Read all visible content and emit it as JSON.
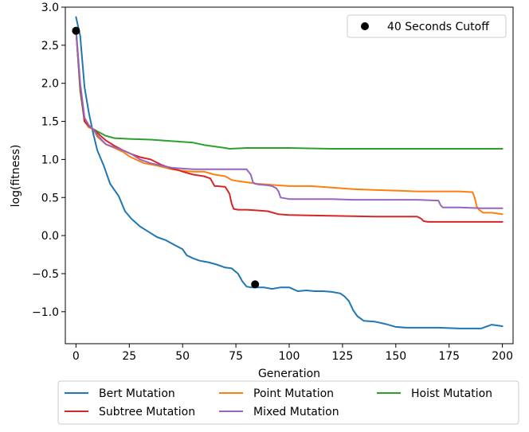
{
  "chart_data": {
    "type": "line",
    "title": "",
    "xlabel": "Generation",
    "ylabel": "log(fitness)",
    "xlim": [
      -5,
      205
    ],
    "ylim": [
      -1.42,
      3.0
    ],
    "x_ticks": [
      0,
      25,
      50,
      75,
      100,
      125,
      150,
      175,
      200
    ],
    "x_tick_labels": [
      "0",
      "25",
      "50",
      "75",
      "100",
      "125",
      "150",
      "175",
      "200"
    ],
    "y_ticks": [
      -1.0,
      -0.5,
      0.0,
      0.5,
      1.0,
      1.5,
      2.0,
      2.5,
      3.0
    ],
    "y_tick_labels": [
      "−1.0",
      "−0.5",
      "0.0",
      "0.5",
      "1.0",
      "1.5",
      "2.0",
      "2.5",
      "3.0"
    ],
    "grid": false,
    "series": [
      {
        "name": "Bert Mutation",
        "color": "#1f77b4",
        "x": [
          0,
          2,
          4,
          6,
          8,
          10,
          13,
          16,
          20,
          23,
          26,
          30,
          34,
          38,
          42,
          46,
          50,
          52,
          55,
          58,
          62,
          66,
          70,
          73,
          76,
          78,
          80,
          82,
          84,
          88,
          92,
          96,
          100,
          104,
          108,
          112,
          116,
          120,
          124,
          126,
          128,
          130,
          132,
          135,
          140,
          145,
          150,
          155,
          160,
          170,
          180,
          190,
          195,
          200
        ],
        "y": [
          2.87,
          2.62,
          1.95,
          1.62,
          1.35,
          1.12,
          0.92,
          0.68,
          0.52,
          0.32,
          0.22,
          0.12,
          0.05,
          -0.02,
          -0.06,
          -0.12,
          -0.18,
          -0.26,
          -0.3,
          -0.33,
          -0.35,
          -0.38,
          -0.42,
          -0.43,
          -0.5,
          -0.6,
          -0.67,
          -0.68,
          -0.68,
          -0.68,
          -0.7,
          -0.68,
          -0.68,
          -0.73,
          -0.72,
          -0.73,
          -0.73,
          -0.74,
          -0.76,
          -0.8,
          -0.86,
          -0.98,
          -1.06,
          -1.12,
          -1.13,
          -1.16,
          -1.2,
          -1.21,
          -1.21,
          -1.21,
          -1.22,
          -1.22,
          -1.17,
          -1.19
        ]
      },
      {
        "name": "Point Mutation",
        "color": "#ff7f0e",
        "x": [
          0,
          2,
          4,
          6,
          8,
          10,
          14,
          18,
          22,
          25,
          28,
          32,
          38,
          45,
          50,
          55,
          60,
          65,
          70,
          73,
          75,
          80,
          85,
          90,
          100,
          110,
          120,
          130,
          140,
          150,
          160,
          170,
          180,
          186,
          187,
          188,
          189,
          191,
          195,
          200
        ],
        "y": [
          2.7,
          1.95,
          1.5,
          1.42,
          1.4,
          1.3,
          1.2,
          1.15,
          1.1,
          1.04,
          1.0,
          0.95,
          0.92,
          0.87,
          0.85,
          0.84,
          0.84,
          0.8,
          0.78,
          0.73,
          0.72,
          0.7,
          0.68,
          0.67,
          0.65,
          0.65,
          0.63,
          0.61,
          0.6,
          0.59,
          0.58,
          0.58,
          0.58,
          0.57,
          0.5,
          0.38,
          0.34,
          0.3,
          0.3,
          0.28
        ]
      },
      {
        "name": "Hoist Mutation",
        "color": "#2ca02c",
        "x": [
          0,
          2,
          4,
          6,
          8,
          10,
          14,
          18,
          25,
          35,
          45,
          55,
          60,
          65,
          70,
          72,
          80,
          100,
          120,
          140,
          160,
          180,
          200
        ],
        "y": [
          2.72,
          1.9,
          1.5,
          1.44,
          1.4,
          1.37,
          1.31,
          1.28,
          1.27,
          1.26,
          1.24,
          1.22,
          1.19,
          1.17,
          1.15,
          1.14,
          1.15,
          1.15,
          1.14,
          1.14,
          1.14,
          1.14,
          1.14
        ]
      },
      {
        "name": "Subtree Mutation",
        "color": "#d62728",
        "x": [
          0,
          2,
          4,
          6,
          8,
          10,
          14,
          18,
          22,
          26,
          30,
          35,
          40,
          45,
          48,
          50,
          55,
          60,
          63,
          65,
          66,
          70,
          72,
          73,
          74,
          76,
          80,
          85,
          90,
          95,
          100,
          120,
          140,
          160,
          162,
          163,
          165,
          180,
          200
        ],
        "y": [
          2.7,
          1.95,
          1.5,
          1.44,
          1.4,
          1.35,
          1.25,
          1.18,
          1.12,
          1.07,
          1.03,
          1.0,
          0.93,
          0.88,
          0.86,
          0.84,
          0.8,
          0.78,
          0.75,
          0.65,
          0.65,
          0.64,
          0.55,
          0.42,
          0.35,
          0.34,
          0.34,
          0.33,
          0.32,
          0.28,
          0.27,
          0.26,
          0.25,
          0.25,
          0.22,
          0.19,
          0.18,
          0.18,
          0.18
        ]
      },
      {
        "name": "Mixed Mutation",
        "color": "#9467bd",
        "x": [
          0,
          2,
          4,
          6,
          8,
          10,
          14,
          18,
          22,
          26,
          30,
          35,
          40,
          45,
          50,
          55,
          60,
          70,
          80,
          82,
          83,
          84,
          86,
          90,
          92,
          94,
          95,
          96,
          100,
          110,
          120,
          130,
          140,
          150,
          160,
          170,
          171,
          172,
          180,
          190,
          200
        ],
        "y": [
          2.72,
          2.0,
          1.55,
          1.45,
          1.4,
          1.32,
          1.2,
          1.16,
          1.12,
          1.07,
          1.0,
          0.95,
          0.92,
          0.89,
          0.88,
          0.87,
          0.87,
          0.87,
          0.87,
          0.8,
          0.7,
          0.68,
          0.67,
          0.66,
          0.65,
          0.62,
          0.58,
          0.5,
          0.48,
          0.48,
          0.48,
          0.47,
          0.47,
          0.47,
          0.47,
          0.46,
          0.4,
          0.37,
          0.37,
          0.36,
          0.36
        ]
      }
    ],
    "markers": {
      "name": "40 Seconds Cutoff",
      "color": "#000000",
      "points": [
        {
          "x": 0,
          "y": 2.69
        },
        {
          "x": 84,
          "y": -0.64
        }
      ]
    },
    "legend_top": "top-right",
    "legend_bottom": "below-axes"
  }
}
